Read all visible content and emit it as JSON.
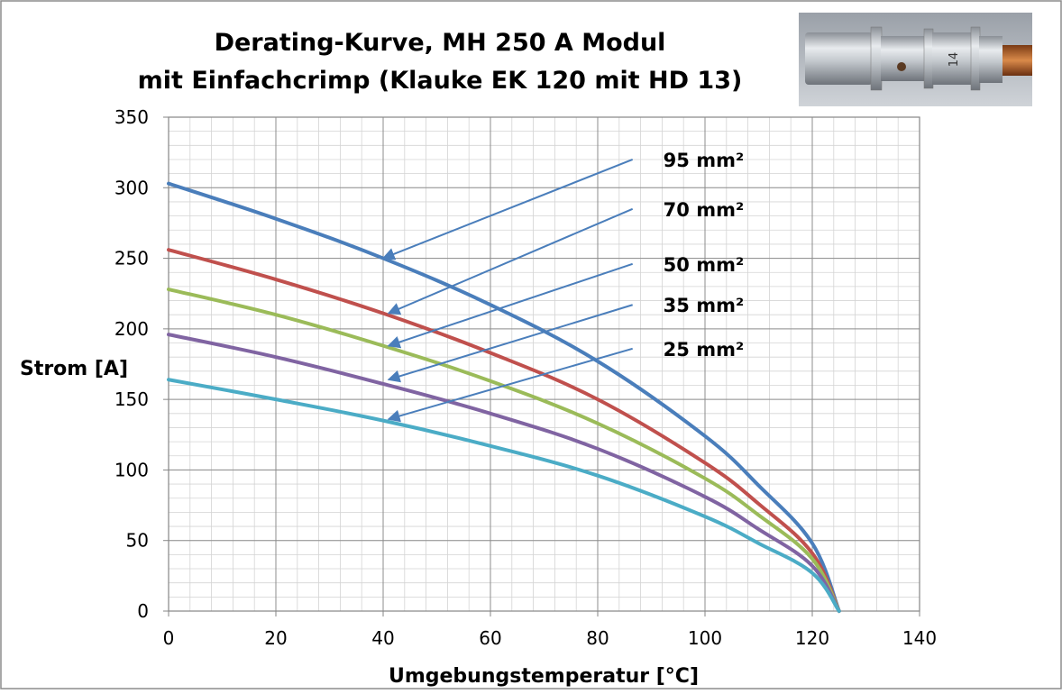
{
  "chart_data": {
    "type": "line",
    "title": "Derating-Kurve, MH 250 A Modul",
    "subtitle": "mit Einfachcrimp (Klauke EK 120 mit HD 13)",
    "xlabel": "Umgebungstemperatur [°C]",
    "ylabel": "Strom [A]",
    "xlim": [
      0,
      140
    ],
    "ylim": [
      0,
      350
    ],
    "x_ticks": [
      "0",
      "20",
      "40",
      "60",
      "80",
      "100",
      "120",
      "140"
    ],
    "y_ticks": [
      "0",
      "50",
      "100",
      "150",
      "200",
      "250",
      "300",
      "350"
    ],
    "grid": true,
    "max_temperature": 125,
    "series": [
      {
        "name": "95 mm²",
        "color": "#4a7ebb",
        "x": [
          0,
          20,
          40,
          60,
          80,
          100,
          110,
          120,
          125
        ],
        "values": [
          303,
          278,
          250,
          217,
          177,
          124,
          89,
          48,
          0
        ]
      },
      {
        "name": "70 mm²",
        "color": "#c0504d",
        "x": [
          0,
          20,
          40,
          60,
          80,
          100,
          110,
          120,
          125
        ],
        "values": [
          256,
          235,
          211,
          183,
          150,
          105,
          76,
          41,
          0
        ]
      },
      {
        "name": "50 mm²",
        "color": "#9bbb59",
        "x": [
          0,
          20,
          40,
          60,
          80,
          100,
          110,
          120,
          125
        ],
        "values": [
          228,
          210,
          188,
          163,
          133,
          94,
          68,
          37,
          0
        ]
      },
      {
        "name": "35 mm²",
        "color": "#8064a2",
        "x": [
          0,
          20,
          40,
          60,
          80,
          100,
          110,
          120,
          125
        ],
        "values": [
          196,
          180,
          161,
          140,
          115,
          81,
          58,
          32,
          0
        ]
      },
      {
        "name": "25 mm²",
        "color": "#4bacc6",
        "x": [
          0,
          20,
          40,
          60,
          80,
          100,
          110,
          120,
          125
        ],
        "values": [
          164,
          150,
          135,
          117,
          96,
          67,
          48,
          27,
          0
        ]
      }
    ],
    "annotations": [
      {
        "text": "95 mm²",
        "color": "#4a7ebb",
        "arrow_from": [
          86.5,
          320
        ],
        "arrow_to": [
          40,
          250
        ]
      },
      {
        "text": "70 mm²",
        "color": "#4a7ebb",
        "arrow_from": [
          86.5,
          285
        ],
        "arrow_to": [
          41,
          211
        ]
      },
      {
        "text": "50 mm²",
        "color": "#4a7ebb",
        "arrow_from": [
          86.5,
          246
        ],
        "arrow_to": [
          41,
          188
        ]
      },
      {
        "text": "35 mm²",
        "color": "#4a7ebb",
        "arrow_from": [
          86.5,
          217
        ],
        "arrow_to": [
          41,
          164
        ]
      },
      {
        "text": "25 mm²",
        "color": "#4a7ebb",
        "arrow_from": [
          86.5,
          186
        ],
        "arrow_to": [
          41,
          136
        ]
      }
    ],
    "inset_photo": "crimp-connector-photo"
  }
}
